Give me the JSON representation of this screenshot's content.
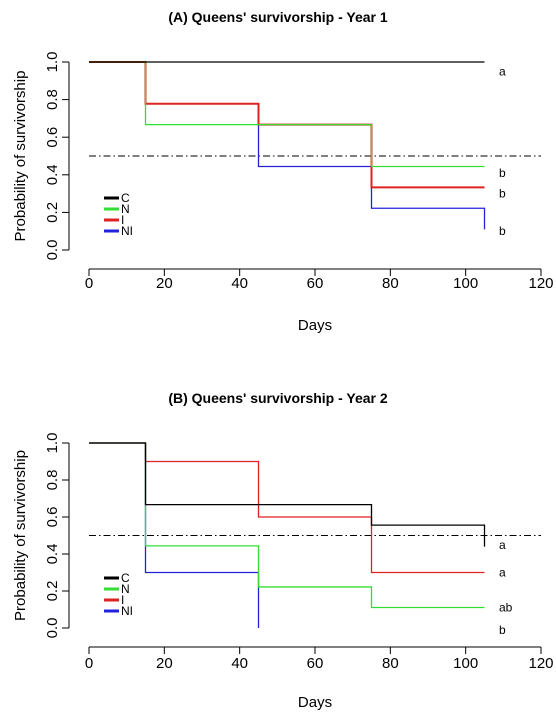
{
  "chart_data": [
    {
      "type": "line",
      "step": true,
      "title": "(A) Queens' survivorship - Year 1",
      "xlabel": "Days",
      "ylabel": "Probability of survivorship",
      "xlim": [
        0,
        120
      ],
      "ylim": [
        0,
        1
      ],
      "xticks": [
        "0",
        "20",
        "40",
        "60",
        "80",
        "100",
        "120"
      ],
      "yticks": [
        "0.0",
        "0.2",
        "0.4",
        "0.6",
        "0.8",
        "1.0"
      ],
      "grid": false,
      "legend": "bottom-left",
      "reference_line": 0.5,
      "series": [
        {
          "name": "C",
          "color": "#000000",
          "points": [
            [
              0,
              1.0
            ],
            [
              105,
              1.0
            ]
          ],
          "label": "a",
          "label_y": 0.95
        },
        {
          "name": "N",
          "color": "#33dd33",
          "points": [
            [
              0,
              1.0
            ],
            [
              15,
              0.667
            ],
            [
              45,
              0.667
            ],
            [
              75,
              0.444
            ],
            [
              105,
              0.444
            ]
          ],
          "label": "b",
          "label_y": 0.41
        },
        {
          "name": "I",
          "color": "#dd2222",
          "points": [
            [
              0,
              1.0
            ],
            [
              15,
              0.778
            ],
            [
              45,
              0.667
            ],
            [
              75,
              0.333
            ],
            [
              105,
              0.333
            ]
          ],
          "label": "b",
          "label_y": 0.3
        },
        {
          "name": "NI",
          "color": "#2222dd",
          "points": [
            [
              0,
              1.0
            ],
            [
              15,
              0.778
            ],
            [
              45,
              0.444
            ],
            [
              75,
              0.222
            ],
            [
              105,
              0.222
            ],
            [
              105,
              0.11
            ]
          ],
          "label": "b",
          "label_y": 0.1
        }
      ]
    },
    {
      "type": "line",
      "step": true,
      "title": "(B) Queens' survivorship - Year 2",
      "xlabel": "Days",
      "ylabel": "Probability of survivorship",
      "xlim": [
        0,
        120
      ],
      "ylim": [
        0,
        1
      ],
      "xticks": [
        "0",
        "20",
        "40",
        "60",
        "80",
        "100",
        "120"
      ],
      "yticks": [
        "0.0",
        "0.2",
        "0.4",
        "0.6",
        "0.8",
        "1.0"
      ],
      "grid": false,
      "legend": "bottom-left",
      "reference_line": 0.5,
      "series": [
        {
          "name": "C",
          "color": "#000000",
          "points": [
            [
              0,
              1.0
            ],
            [
              15,
              0.667
            ],
            [
              75,
              0.667
            ],
            [
              75,
              0.556
            ],
            [
              105,
              0.556
            ],
            [
              105,
              0.44
            ]
          ],
          "label": "a",
          "label_y": 0.45
        },
        {
          "name": "N",
          "color": "#33dd33",
          "points": [
            [
              0,
              1.0
            ],
            [
              15,
              0.444
            ],
            [
              45,
              0.444
            ],
            [
              45,
              0.222
            ],
            [
              75,
              0.222
            ],
            [
              75,
              0.111
            ],
            [
              105,
              0.111
            ]
          ],
          "label": "ab",
          "label_y": 0.11
        },
        {
          "name": "I",
          "color": "#dd2222",
          "points": [
            [
              0,
              1.0
            ],
            [
              15,
              0.9
            ],
            [
              45,
              0.9
            ],
            [
              45,
              0.6
            ],
            [
              75,
              0.6
            ],
            [
              75,
              0.3
            ],
            [
              105,
              0.3
            ]
          ],
          "label": "a",
          "label_y": 0.3
        },
        {
          "name": "NI",
          "color": "#2222dd",
          "points": [
            [
              0,
              1.0
            ],
            [
              15,
              1.0
            ],
            [
              15,
              0.3
            ],
            [
              45,
              0.3
            ],
            [
              45,
              0.0
            ]
          ],
          "label": "b",
          "label_y": -0.01
        }
      ]
    }
  ]
}
